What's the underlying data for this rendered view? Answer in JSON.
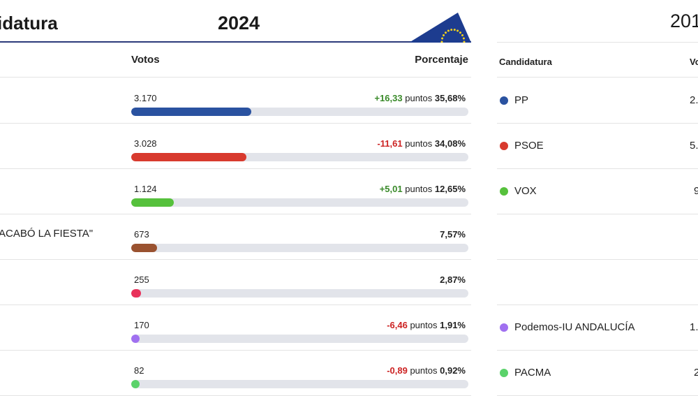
{
  "header": {
    "title": "idatura",
    "year": "2024",
    "year_right": "201"
  },
  "table2024": {
    "col_votes": "Votos",
    "col_pct": "Porcentaje",
    "unit": "puntos",
    "rows": [
      {
        "name": "",
        "votes": "3.170",
        "change": "+16,33",
        "dir": "up",
        "pct": "35,68%",
        "share": 35.68,
        "color": "#2a52a0"
      },
      {
        "name": "",
        "votes": "3.028",
        "change": "-11,61",
        "dir": "down",
        "pct": "34,08%",
        "share": 34.08,
        "color": "#d83a2e"
      },
      {
        "name": "",
        "votes": "1.124",
        "change": "+5,01",
        "dir": "up",
        "pct": "12,65%",
        "share": 12.65,
        "color": "#56c13c"
      },
      {
        "name": "ACABÓ LA FIESTA\"",
        "votes": "673",
        "change": "",
        "dir": "",
        "pct": "7,57%",
        "share": 7.57,
        "color": "#9a5230"
      },
      {
        "name": "",
        "votes": "255",
        "change": "",
        "dir": "",
        "pct": "2,87%",
        "share": 2.87,
        "color": "#e8315a"
      },
      {
        "name": "",
        "votes": "170",
        "change": "-6,46",
        "dir": "down",
        "pct": "1,91%",
        "share": 1.91,
        "color": "#a070f0"
      },
      {
        "name": "",
        "votes": "82",
        "change": "-0,89",
        "dir": "down",
        "pct": "0,92%",
        "share": 0.92,
        "color": "#5ad26a"
      }
    ]
  },
  "table2019": {
    "col_cand": "Candidatura",
    "col_votes": "Vo",
    "rows": [
      {
        "name": "PP",
        "votes": "2.",
        "color": "#2a52a0"
      },
      {
        "name": "PSOE",
        "votes": "5.",
        "color": "#d83a2e"
      },
      {
        "name": "VOX",
        "votes": "9",
        "color": "#56c13c"
      },
      {
        "name": "",
        "votes": "",
        "color": ""
      },
      {
        "name": "",
        "votes": "",
        "color": ""
      },
      {
        "name": "Podemos-IU ANDALUCÍA",
        "votes": "1.",
        "color": "#a070f0"
      },
      {
        "name": "PACMA",
        "votes": "2",
        "color": "#5ad26a"
      }
    ]
  },
  "colors": {
    "header_line": "#2c3a7a",
    "eu_blue": "#1d3c8f",
    "eu_star": "#f5d21a"
  }
}
